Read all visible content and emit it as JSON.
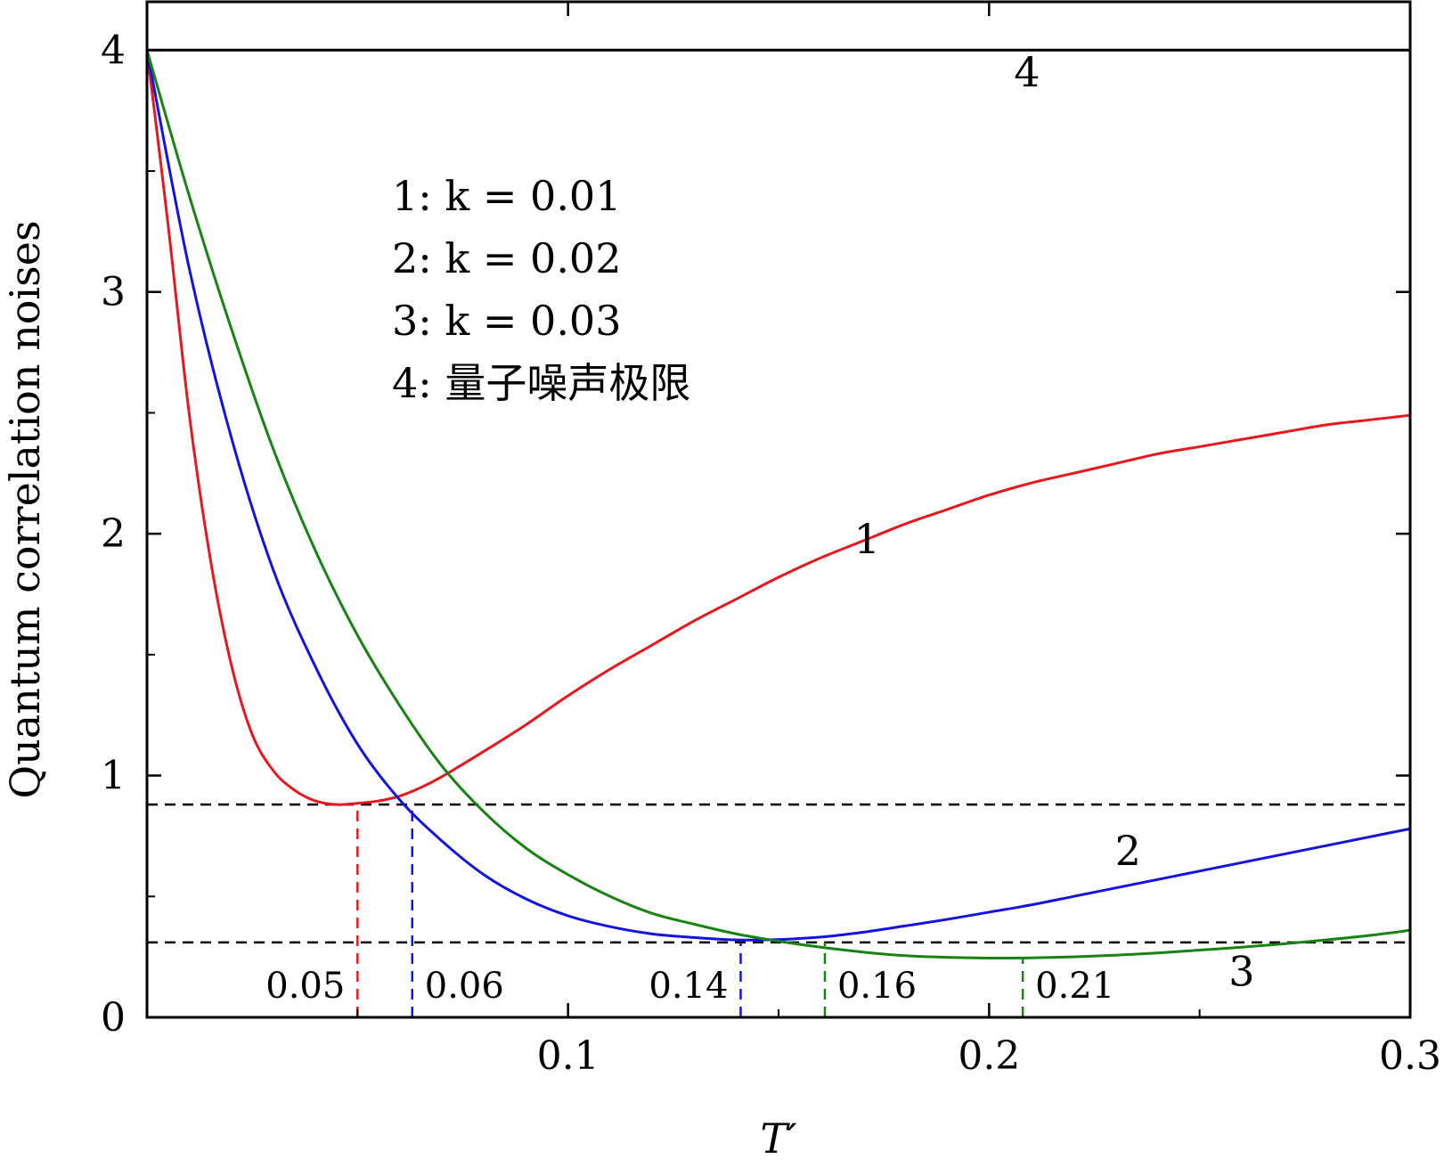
{
  "chart_data": {
    "type": "line",
    "xlabel": "T′",
    "ylabel": "Quantum correlation noises",
    "xlim": [
      0,
      0.3
    ],
    "ylim": [
      0,
      4.2
    ],
    "x_ticks": [
      {
        "value": 0.1,
        "label": "0.1"
      },
      {
        "value": 0.2,
        "label": "0.2"
      },
      {
        "value": 0.3,
        "label": "0.3"
      }
    ],
    "x_minor_ticks": [
      0.05,
      0.15,
      0.25
    ],
    "y_ticks": [
      {
        "value": 0,
        "label": "0"
      },
      {
        "value": 1,
        "label": "1"
      },
      {
        "value": 2,
        "label": "2"
      },
      {
        "value": 3,
        "label": "3"
      },
      {
        "value": 4,
        "label": "4"
      }
    ],
    "y_minor_ticks": [
      0.5,
      1.5,
      2.5,
      3.5
    ],
    "legend": {
      "placement": "upper-middle",
      "entries": [
        {
          "id": "1",
          "text": "1: k = 0.01"
        },
        {
          "id": "2",
          "text": "2: k = 0.02"
        },
        {
          "id": "3",
          "text": "3: k = 0.03"
        },
        {
          "id": "4",
          "text": "4: 量子噪声极限"
        }
      ]
    },
    "series": [
      {
        "label": "1",
        "color": "#e8161e",
        "label_pos": {
          "x": 0.171,
          "y": 1.92
        },
        "x": [
          0.0,
          0.005,
          0.01,
          0.015,
          0.02,
          0.025,
          0.03,
          0.035,
          0.04,
          0.045,
          0.05,
          0.055,
          0.06,
          0.065,
          0.07,
          0.08,
          0.09,
          0.1,
          0.11,
          0.12,
          0.13,
          0.14,
          0.15,
          0.16,
          0.17,
          0.18,
          0.19,
          0.2,
          0.21,
          0.22,
          0.23,
          0.24,
          0.25,
          0.26,
          0.27,
          0.28,
          0.29,
          0.3
        ],
        "y": [
          4.0,
          3.28,
          2.5,
          1.9,
          1.46,
          1.17,
          1.02,
          0.94,
          0.895,
          0.88,
          0.885,
          0.895,
          0.915,
          0.95,
          0.995,
          1.1,
          1.21,
          1.33,
          1.44,
          1.54,
          1.64,
          1.73,
          1.82,
          1.9,
          1.97,
          2.04,
          2.1,
          2.16,
          2.21,
          2.25,
          2.29,
          2.33,
          2.36,
          2.39,
          2.42,
          2.45,
          2.47,
          2.49
        ]
      },
      {
        "label": "2",
        "color": "#1412e0",
        "label_pos": {
          "x": 0.233,
          "y": 0.63
        },
        "x": [
          0.0,
          0.01,
          0.02,
          0.03,
          0.04,
          0.05,
          0.06,
          0.07,
          0.08,
          0.09,
          0.1,
          0.11,
          0.12,
          0.13,
          0.14,
          0.15,
          0.16,
          0.17,
          0.18,
          0.19,
          0.2,
          0.21,
          0.22,
          0.23,
          0.24,
          0.25,
          0.26,
          0.27,
          0.28,
          0.29,
          0.3
        ],
        "y": [
          4.0,
          3.1,
          2.4,
          1.85,
          1.45,
          1.13,
          0.9,
          0.73,
          0.59,
          0.49,
          0.42,
          0.375,
          0.345,
          0.33,
          0.32,
          0.322,
          0.332,
          0.352,
          0.378,
          0.405,
          0.435,
          0.465,
          0.5,
          0.535,
          0.57,
          0.605,
          0.64,
          0.675,
          0.71,
          0.745,
          0.78
        ]
      },
      {
        "label": "3",
        "color": "#178411",
        "label_pos": {
          "x": 0.26,
          "y": 0.13
        },
        "x": [
          0.0,
          0.01,
          0.02,
          0.03,
          0.04,
          0.05,
          0.06,
          0.07,
          0.08,
          0.09,
          0.1,
          0.11,
          0.12,
          0.13,
          0.14,
          0.15,
          0.16,
          0.17,
          0.18,
          0.19,
          0.2,
          0.21,
          0.22,
          0.23,
          0.24,
          0.25,
          0.26,
          0.27,
          0.28,
          0.29,
          0.3
        ],
        "y": [
          4.0,
          3.4,
          2.85,
          2.35,
          1.93,
          1.58,
          1.29,
          1.04,
          0.85,
          0.7,
          0.59,
          0.5,
          0.43,
          0.385,
          0.345,
          0.315,
          0.29,
          0.27,
          0.255,
          0.248,
          0.245,
          0.246,
          0.25,
          0.257,
          0.266,
          0.278,
          0.29,
          0.304,
          0.32,
          0.338,
          0.36
        ]
      },
      {
        "label": "4",
        "color": "#000000",
        "label_pos": {
          "x": 0.209,
          "y": 3.85
        },
        "x": [
          0.0,
          0.3
        ],
        "y": [
          4.0,
          4.0
        ]
      }
    ],
    "reference_lines": [
      {
        "orientation": "horizontal",
        "y": 0.88,
        "x_from": 0.0,
        "x_to": 0.3,
        "color": "#000000"
      },
      {
        "orientation": "horizontal",
        "y": 0.31,
        "x_from": 0.0,
        "x_to": 0.3,
        "color": "#000000"
      },
      {
        "orientation": "vertical",
        "x": 0.05,
        "y_from": 0.0,
        "y_to": 0.88,
        "color": "#e8161e",
        "label": "0.05",
        "label_side": "left"
      },
      {
        "orientation": "vertical",
        "x": 0.063,
        "y_from": 0.0,
        "y_to": 0.88,
        "color": "#1412e0",
        "label": "0.06",
        "label_side": "right"
      },
      {
        "orientation": "vertical",
        "x": 0.141,
        "y_from": 0.0,
        "y_to": 0.31,
        "color": "#1412e0",
        "label": "0.14",
        "label_side": "left"
      },
      {
        "orientation": "vertical",
        "x": 0.161,
        "y_from": 0.0,
        "y_to": 0.31,
        "color": "#178411",
        "label": "0.16",
        "label_side": "right"
      },
      {
        "orientation": "vertical",
        "x": 0.208,
        "y_from": 0.0,
        "y_to": 0.245,
        "color": "#178411",
        "label": "0.21",
        "label_side": "right"
      }
    ]
  }
}
